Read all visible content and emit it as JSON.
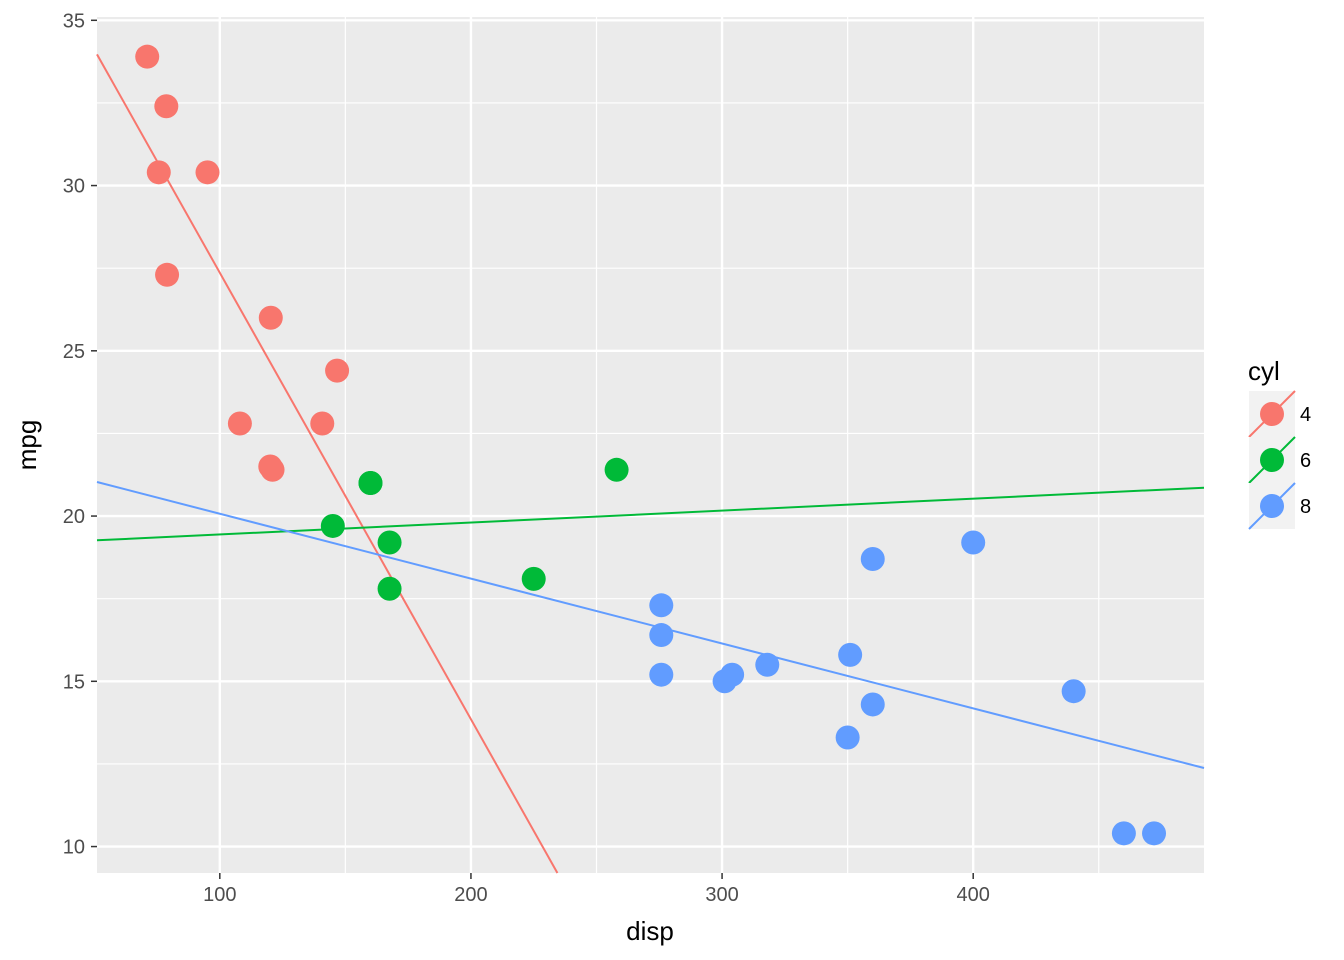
{
  "chart_data": {
    "type": "scatter",
    "xlabel": "disp",
    "ylabel": "mpg",
    "xlim": [
      51.1,
      491.9
    ],
    "ylim": [
      9.2,
      35.1
    ],
    "x_ticks": [
      100,
      200,
      300,
      400
    ],
    "y_ticks": [
      10,
      15,
      20,
      25,
      30,
      35
    ],
    "grid": true,
    "legend": {
      "title": "cyl",
      "position": "right"
    },
    "series": [
      {
        "name": "4",
        "color": "#F8766D",
        "points": [
          [
            71.1,
            33.9
          ],
          [
            78.7,
            32.4
          ],
          [
            75.7,
            30.4
          ],
          [
            95.1,
            30.4
          ],
          [
            79.0,
            27.3
          ],
          [
            120.3,
            26.0
          ],
          [
            146.7,
            24.4
          ],
          [
            108.0,
            22.8
          ],
          [
            140.8,
            22.8
          ],
          [
            120.1,
            21.5
          ],
          [
            121.0,
            21.4
          ]
        ],
        "trend": {
          "slope": -0.1351,
          "intercept": 40.872
        }
      },
      {
        "name": "6",
        "color": "#00BA38",
        "points": [
          [
            160.0,
            21.0
          ],
          [
            160.0,
            21.0
          ],
          [
            258.0,
            21.4
          ],
          [
            145.0,
            19.7
          ],
          [
            167.6,
            19.2
          ],
          [
            225.0,
            18.1
          ],
          [
            167.6,
            17.8
          ]
        ],
        "trend": {
          "slope": 0.00361,
          "intercept": 19.082
        }
      },
      {
        "name": "8",
        "color": "#619CFF",
        "points": [
          [
            360.0,
            18.7
          ],
          [
            400.0,
            19.2
          ],
          [
            275.8,
            17.3
          ],
          [
            275.8,
            16.4
          ],
          [
            275.8,
            15.2
          ],
          [
            304.0,
            15.2
          ],
          [
            301.0,
            15.0
          ],
          [
            318.0,
            15.5
          ],
          [
            351.0,
            15.8
          ],
          [
            360.0,
            14.3
          ],
          [
            350.0,
            13.3
          ],
          [
            440.0,
            14.7
          ],
          [
            460.0,
            10.4
          ],
          [
            472.0,
            10.4
          ]
        ],
        "trend": {
          "slope": -0.01963,
          "intercept": 22.033
        }
      }
    ]
  }
}
